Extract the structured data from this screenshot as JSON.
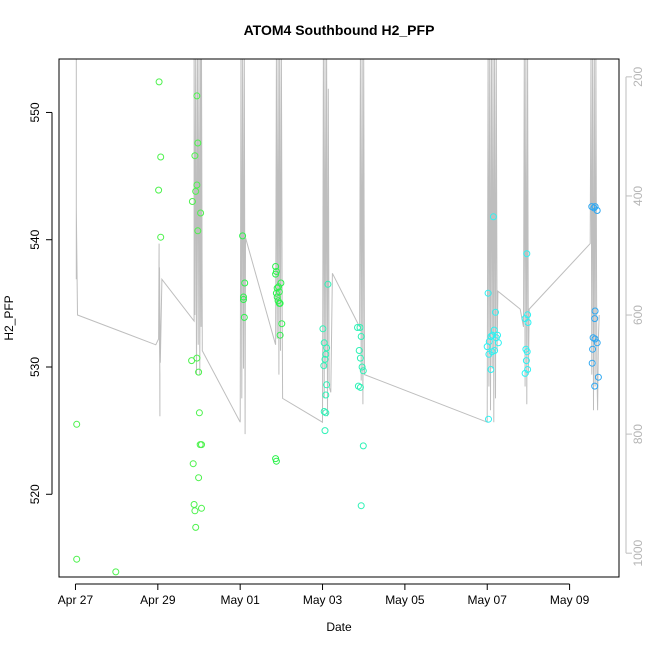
{
  "chart_data": {
    "type": "scatter",
    "title": "ATOM4 Southbound H2_PFP",
    "xlabel": "Date",
    "ylabel": "H2_PFP",
    "x_ticks": [
      "Apr 27",
      "Apr 29",
      "May 01",
      "May 03",
      "May 05",
      "May 07",
      "May 09"
    ],
    "x_tick_days": [
      0,
      2,
      4,
      6,
      8,
      10,
      12
    ],
    "xlim_days": [
      -0.4,
      13.2
    ],
    "ylim": [
      513.5,
      554.2
    ],
    "y_ticks": [
      520,
      530,
      540,
      550
    ],
    "right_axis": {
      "ticks": [
        200,
        400,
        600,
        800,
        1000
      ],
      "lim": [
        1040,
        170
      ],
      "color": "#bebebe"
    },
    "grid": false,
    "series": [
      {
        "color": "#4df24d",
        "points": [
          [
            0.03,
            525.5
          ],
          [
            0.03,
            514.9
          ],
          [
            0.98,
            513.9
          ],
          [
            2.03,
            552.4
          ],
          [
            2.07,
            546.5
          ],
          [
            2.02,
            543.9
          ],
          [
            2.07,
            540.2
          ],
          [
            2.84,
            543.0
          ],
          [
            2.82,
            530.5
          ],
          [
            2.86,
            522.4
          ],
          [
            2.88,
            519.2
          ],
          [
            2.9,
            518.7
          ],
          [
            2.92,
            517.4
          ],
          [
            2.9,
            546.6
          ],
          [
            2.95,
            551.3
          ],
          [
            2.97,
            547.6
          ],
          [
            2.95,
            544.3
          ],
          [
            2.92,
            543.8
          ],
          [
            2.97,
            540.7
          ],
          [
            3.04,
            542.1
          ],
          [
            2.95,
            530.7
          ],
          [
            2.99,
            529.6
          ],
          [
            3.01,
            526.4
          ],
          [
            3.03,
            523.9
          ],
          [
            3.06,
            523.9
          ],
          [
            2.99,
            521.3
          ],
          [
            3.06,
            518.9
          ]
        ]
      },
      {
        "color": "#2ef24d",
        "points": [
          [
            4.06,
            540.3
          ],
          [
            4.11,
            536.6
          ],
          [
            4.08,
            535.5
          ],
          [
            4.08,
            535.3
          ],
          [
            4.1,
            533.9
          ],
          [
            4.86,
            537.9
          ],
          [
            4.88,
            537.5
          ],
          [
            4.86,
            537.3
          ],
          [
            4.9,
            536.2
          ],
          [
            4.93,
            536.3
          ],
          [
            4.95,
            535.9
          ],
          [
            4.88,
            535.8
          ],
          [
            4.9,
            535.5
          ],
          [
            4.92,
            535.2
          ],
          [
            4.95,
            535.0
          ],
          [
            4.97,
            535.0
          ],
          [
            4.99,
            536.6
          ],
          [
            5.01,
            533.4
          ],
          [
            4.97,
            532.5
          ],
          [
            4.86,
            522.8
          ],
          [
            4.88,
            522.6
          ]
        ]
      },
      {
        "color": "#2ef2b6",
        "points": [
          [
            6.01,
            533.0
          ],
          [
            6.04,
            531.9
          ],
          [
            6.1,
            531.5
          ],
          [
            6.08,
            531.0
          ],
          [
            6.06,
            530.6
          ],
          [
            6.03,
            530.1
          ],
          [
            6.1,
            528.6
          ],
          [
            6.13,
            536.5
          ],
          [
            6.08,
            527.8
          ],
          [
            6.04,
            526.5
          ],
          [
            6.08,
            526.4
          ],
          [
            6.06,
            525.0
          ],
          [
            6.85,
            533.1
          ],
          [
            6.91,
            533.1
          ],
          [
            6.94,
            532.4
          ],
          [
            6.89,
            531.3
          ],
          [
            6.92,
            530.7
          ],
          [
            6.96,
            530.0
          ],
          [
            6.99,
            529.7
          ],
          [
            6.87,
            528.5
          ],
          [
            6.92,
            528.4
          ],
          [
            6.99,
            523.8
          ],
          [
            6.94,
            519.1
          ]
        ]
      },
      {
        "color": "#2ef2f2",
        "points": [
          [
            10.02,
            535.8
          ],
          [
            10.05,
            532.0
          ],
          [
            10.09,
            532.4
          ],
          [
            10.13,
            532.5
          ],
          [
            10.17,
            532.9
          ],
          [
            10.2,
            534.3
          ],
          [
            10.22,
            532.3
          ],
          [
            10.25,
            532.5
          ],
          [
            10.15,
            541.8
          ],
          [
            10.0,
            531.6
          ],
          [
            10.04,
            531.0
          ],
          [
            10.09,
            529.8
          ],
          [
            10.12,
            531.2
          ],
          [
            10.18,
            531.3
          ],
          [
            10.27,
            531.9
          ],
          [
            10.03,
            525.9
          ],
          [
            10.92,
            533.8
          ],
          [
            10.96,
            538.9
          ],
          [
            10.98,
            534.1
          ],
          [
            10.99,
            533.5
          ],
          [
            10.94,
            531.4
          ],
          [
            10.97,
            531.2
          ],
          [
            10.95,
            530.5
          ],
          [
            10.98,
            529.8
          ],
          [
            10.92,
            529.5
          ]
        ]
      },
      {
        "color": "#2ea8f2",
        "points": [
          [
            12.54,
            542.6
          ],
          [
            12.59,
            542.5
          ],
          [
            12.62,
            542.6
          ],
          [
            12.67,
            542.3
          ],
          [
            12.62,
            534.4
          ],
          [
            12.61,
            533.8
          ],
          [
            12.57,
            532.3
          ],
          [
            12.62,
            532.2
          ],
          [
            12.67,
            531.9
          ],
          [
            12.56,
            531.4
          ],
          [
            12.55,
            530.3
          ],
          [
            12.61,
            528.5
          ],
          [
            12.7,
            529.2
          ]
        ]
      }
    ],
    "altitude_trace": {
      "color": "#bebebe",
      "points": [
        [
          0.02,
          540
        ],
        [
          0.02,
          420
        ],
        [
          0.02,
          280
        ],
        [
          0.02,
          140
        ],
        [
          0.02,
          420
        ],
        [
          0.05,
          600
        ],
        [
          1.95,
          650
        ],
        [
          2.02,
          640
        ],
        [
          2.03,
          480
        ],
        [
          2.03,
          600
        ],
        [
          2.05,
          700
        ],
        [
          2.05,
          770
        ],
        [
          2.04,
          520
        ],
        [
          2.06,
          680
        ],
        [
          2.1,
          540
        ],
        [
          2.88,
          610
        ],
        [
          2.88,
          150
        ],
        [
          2.9,
          600
        ],
        [
          2.92,
          150
        ],
        [
          2.94,
          700
        ],
        [
          2.96,
          150
        ],
        [
          2.98,
          650
        ],
        [
          3.0,
          150
        ],
        [
          3.02,
          700
        ],
        [
          3.04,
          160
        ],
        [
          3.05,
          620
        ],
        [
          3.06,
          170
        ],
        [
          3.08,
          660
        ],
        [
          4.0,
          780
        ],
        [
          4.02,
          150
        ],
        [
          4.04,
          740
        ],
        [
          4.06,
          170
        ],
        [
          4.08,
          690
        ],
        [
          4.1,
          150
        ],
        [
          4.12,
          800
        ],
        [
          4.13,
          470
        ],
        [
          4.86,
          650
        ],
        [
          4.88,
          170
        ],
        [
          4.9,
          640
        ],
        [
          4.92,
          160
        ],
        [
          4.94,
          700
        ],
        [
          4.96,
          150
        ],
        [
          4.98,
          660
        ],
        [
          5.0,
          170
        ],
        [
          5.02,
          600
        ],
        [
          5.03,
          740
        ],
        [
          6.0,
          780
        ],
        [
          6.02,
          150
        ],
        [
          6.04,
          740
        ],
        [
          6.06,
          170
        ],
        [
          6.08,
          690
        ],
        [
          6.1,
          150
        ],
        [
          6.12,
          770
        ],
        [
          6.14,
          220
        ],
        [
          6.16,
          720
        ],
        [
          6.2,
          730
        ],
        [
          6.24,
          530
        ],
        [
          6.9,
          620
        ],
        [
          6.92,
          170
        ],
        [
          6.94,
          710
        ],
        [
          6.96,
          150
        ],
        [
          6.98,
          750
        ],
        [
          7.0,
          170
        ],
        [
          7.02,
          700
        ],
        [
          10.0,
          780
        ],
        [
          10.02,
          150
        ],
        [
          10.04,
          720
        ],
        [
          10.06,
          170
        ],
        [
          10.08,
          760
        ],
        [
          10.1,
          150
        ],
        [
          10.12,
          690
        ],
        [
          10.14,
          170
        ],
        [
          10.16,
          780
        ],
        [
          10.18,
          150
        ],
        [
          10.2,
          740
        ],
        [
          10.22,
          170
        ],
        [
          10.24,
          660
        ],
        [
          10.26,
          560
        ],
        [
          10.8,
          590
        ],
        [
          10.88,
          620
        ],
        [
          10.9,
          160
        ],
        [
          10.92,
          720
        ],
        [
          10.94,
          150
        ],
        [
          10.96,
          750
        ],
        [
          10.98,
          170
        ],
        [
          11.0,
          700
        ],
        [
          11.02,
          590
        ],
        [
          12.5,
          480
        ],
        [
          12.52,
          150
        ],
        [
          12.54,
          700
        ],
        [
          12.56,
          170
        ],
        [
          12.58,
          760
        ],
        [
          12.6,
          150
        ],
        [
          12.62,
          720
        ],
        [
          12.64,
          170
        ],
        [
          12.66,
          680
        ],
        [
          12.68,
          760
        ],
        [
          12.7,
          640
        ],
        [
          12.72,
          600
        ]
      ]
    }
  }
}
